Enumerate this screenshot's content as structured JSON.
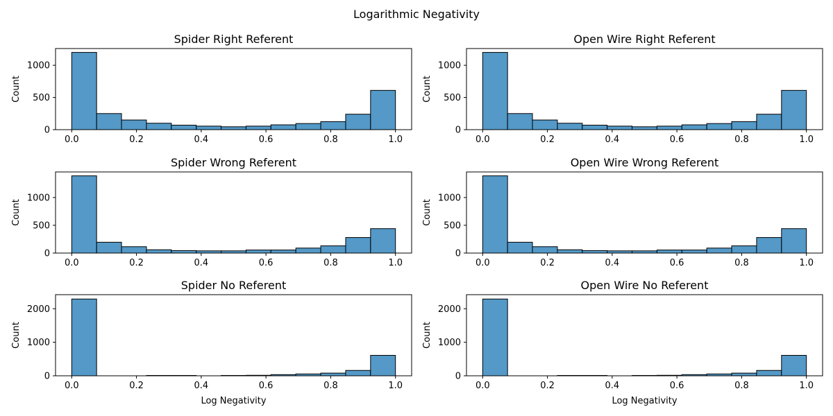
{
  "figure": {
    "title": "Logarithmic Negativity",
    "bar_color": "#5499c7",
    "edge_color": "#000000"
  },
  "chart_data": [
    {
      "type": "bar",
      "title": "Spider Right Referent",
      "xlabel": "",
      "ylabel": "Count",
      "bin_edges": [
        0,
        0.0769,
        0.1538,
        0.2308,
        0.3077,
        0.3846,
        0.4615,
        0.5385,
        0.6154,
        0.6923,
        0.7692,
        0.8462,
        0.9231,
        1.0
      ],
      "values": [
        1200,
        250,
        150,
        100,
        70,
        55,
        45,
        55,
        75,
        95,
        125,
        240,
        610
      ],
      "xlim": [
        -0.05,
        1.05
      ],
      "ylim": [
        0,
        1260
      ],
      "xticks": [
        "0.0",
        "0.2",
        "0.4",
        "0.6",
        "0.8",
        "1.0"
      ],
      "xtick_values": [
        0,
        0.2,
        0.4,
        0.6,
        0.8,
        1.0
      ],
      "yticks": [
        "0",
        "500",
        "1000"
      ],
      "ytick_values": [
        0,
        500,
        1000
      ]
    },
    {
      "type": "bar",
      "title": "Open Wire Right Referent",
      "xlabel": "",
      "ylabel": "Count",
      "bin_edges": [
        0,
        0.0769,
        0.1538,
        0.2308,
        0.3077,
        0.3846,
        0.4615,
        0.5385,
        0.6154,
        0.6923,
        0.7692,
        0.8462,
        0.9231,
        1.0
      ],
      "values": [
        1200,
        250,
        150,
        100,
        70,
        55,
        45,
        55,
        75,
        95,
        125,
        240,
        610
      ],
      "xlim": [
        -0.05,
        1.05
      ],
      "ylim": [
        0,
        1260
      ],
      "xticks": [
        "0.0",
        "0.2",
        "0.4",
        "0.6",
        "0.8",
        "1.0"
      ],
      "xtick_values": [
        0,
        0.2,
        0.4,
        0.6,
        0.8,
        1.0
      ],
      "yticks": [
        "0",
        "500",
        "1000"
      ],
      "ytick_values": [
        0,
        500,
        1000
      ]
    },
    {
      "type": "bar",
      "title": "Spider Wrong Referent",
      "xlabel": "",
      "ylabel": "Count",
      "bin_edges": [
        0,
        0.0769,
        0.1538,
        0.2308,
        0.3077,
        0.3846,
        0.4615,
        0.5385,
        0.6154,
        0.6923,
        0.7692,
        0.8462,
        0.9231,
        1.0
      ],
      "values": [
        1390,
        195,
        115,
        60,
        45,
        40,
        40,
        55,
        55,
        90,
        130,
        280,
        440
      ],
      "xlim": [
        -0.05,
        1.05
      ],
      "ylim": [
        0,
        1460
      ],
      "xticks": [
        "0.0",
        "0.2",
        "0.4",
        "0.6",
        "0.8",
        "1.0"
      ],
      "xtick_values": [
        0,
        0.2,
        0.4,
        0.6,
        0.8,
        1.0
      ],
      "yticks": [
        "0",
        "500",
        "1000"
      ],
      "ytick_values": [
        0,
        500,
        1000
      ]
    },
    {
      "type": "bar",
      "title": "Open Wire Wrong Referent",
      "xlabel": "",
      "ylabel": "Count",
      "bin_edges": [
        0,
        0.0769,
        0.1538,
        0.2308,
        0.3077,
        0.3846,
        0.4615,
        0.5385,
        0.6154,
        0.6923,
        0.7692,
        0.8462,
        0.9231,
        1.0
      ],
      "values": [
        1390,
        195,
        115,
        60,
        45,
        40,
        40,
        55,
        55,
        90,
        130,
        280,
        440
      ],
      "xlim": [
        -0.05,
        1.05
      ],
      "ylim": [
        0,
        1460
      ],
      "xticks": [
        "0.0",
        "0.2",
        "0.4",
        "0.6",
        "0.8",
        "1.0"
      ],
      "xtick_values": [
        0,
        0.2,
        0.4,
        0.6,
        0.8,
        1.0
      ],
      "yticks": [
        "0",
        "500",
        "1000"
      ],
      "ytick_values": [
        0,
        500,
        1000
      ]
    },
    {
      "type": "bar",
      "title": "Spider No Referent",
      "xlabel": "Log Negativity",
      "ylabel": "Count",
      "bin_edges": [
        0,
        0.0769,
        0.1538,
        0.2308,
        0.3077,
        0.3846,
        0.4615,
        0.5385,
        0.6154,
        0.6923,
        0.7692,
        0.8462,
        0.9231,
        1.0
      ],
      "values": [
        2290,
        0,
        0,
        10,
        10,
        0,
        10,
        15,
        35,
        55,
        80,
        160,
        610
      ],
      "xlim": [
        -0.05,
        1.05
      ],
      "ylim": [
        0,
        2420
      ],
      "xticks": [
        "0.0",
        "0.2",
        "0.4",
        "0.6",
        "0.8",
        "1.0"
      ],
      "xtick_values": [
        0,
        0.2,
        0.4,
        0.6,
        0.8,
        1.0
      ],
      "yticks": [
        "0",
        "1000",
        "2000"
      ],
      "ytick_values": [
        0,
        1000,
        2000
      ]
    },
    {
      "type": "bar",
      "title": "Open Wire No Referent",
      "xlabel": "Log Negativity",
      "ylabel": "Count",
      "bin_edges": [
        0,
        0.0769,
        0.1538,
        0.2308,
        0.3077,
        0.3846,
        0.4615,
        0.5385,
        0.6154,
        0.6923,
        0.7692,
        0.8462,
        0.9231,
        1.0
      ],
      "values": [
        2290,
        0,
        0,
        10,
        10,
        0,
        10,
        15,
        35,
        55,
        80,
        160,
        610
      ],
      "xlim": [
        -0.05,
        1.05
      ],
      "ylim": [
        0,
        2420
      ],
      "xticks": [
        "0.0",
        "0.2",
        "0.4",
        "0.6",
        "0.8",
        "1.0"
      ],
      "xtick_values": [
        0,
        0.2,
        0.4,
        0.6,
        0.8,
        1.0
      ],
      "yticks": [
        "0",
        "1000",
        "2000"
      ],
      "ytick_values": [
        0,
        1000,
        2000
      ]
    }
  ]
}
